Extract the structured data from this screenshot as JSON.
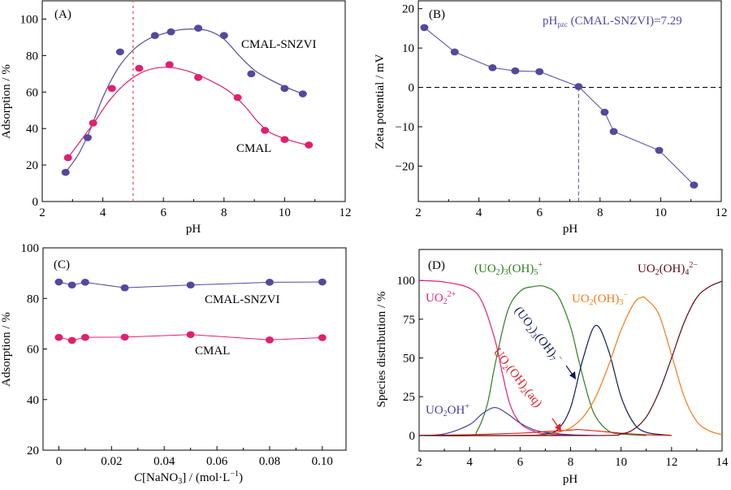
{
  "chart_data": [
    {
      "panel": "A",
      "type": "scatter",
      "panel_label": "(A)",
      "xlabel": "pH",
      "ylabel": "Adsorption / %",
      "xlim": [
        2,
        12
      ],
      "ylim": [
        0,
        110
      ],
      "xticks": [
        2,
        4,
        6,
        8,
        10,
        12
      ],
      "yticks": [
        0,
        20,
        40,
        60,
        80,
        100
      ],
      "reference_line": {
        "x": 5,
        "style": "dotted",
        "color": "#e8646e"
      },
      "series": [
        {
          "name": "CMAL-SNZVI",
          "color": "#56479c",
          "fit": "smooth",
          "x": [
            2.77,
            3.5,
            4.57,
            5.72,
            6.25,
            7.15,
            8.0,
            8.9,
            10.0,
            10.6
          ],
          "y": [
            16,
            35,
            82,
            91,
            93,
            95,
            91,
            70,
            62,
            59
          ],
          "fit_x": [
            2.77,
            3.2,
            3.6,
            4.0,
            4.5,
            5.0,
            5.5,
            6.0,
            6.5,
            7.0,
            7.5,
            8.0,
            8.5,
            9.0,
            9.5,
            10.0,
            10.6
          ],
          "fit_y": [
            16,
            26,
            40,
            57,
            73,
            83,
            89,
            92,
            94,
            94.5,
            93.5,
            89,
            80,
            72,
            67,
            63,
            59
          ]
        },
        {
          "name": "CMAL",
          "color": "#e0206e",
          "fit": "smooth",
          "x": [
            2.85,
            3.68,
            4.3,
            5.2,
            6.2,
            7.15,
            8.45,
            9.35,
            10.0,
            10.8
          ],
          "y": [
            24,
            43,
            62,
            73,
            75,
            68,
            57,
            39,
            34,
            31
          ],
          "fit_x": [
            2.85,
            3.3,
            3.7,
            4.2,
            4.7,
            5.2,
            5.7,
            6.2,
            6.7,
            7.2,
            7.7,
            8.2,
            8.7,
            9.1,
            9.5,
            10.0,
            10.5,
            10.8
          ],
          "fit_y": [
            24,
            34,
            43,
            55,
            64,
            70,
            73,
            73.5,
            72,
            69,
            65,
            60,
            52,
            44,
            38,
            34.5,
            32,
            31
          ]
        }
      ],
      "annotations": [
        "CMAL-SNZVI",
        "CMAL"
      ]
    },
    {
      "panel": "B",
      "type": "line",
      "panel_label": "(B)",
      "xlabel": "pH",
      "ylabel": "Zeta potential / mV",
      "xlim": [
        2,
        12
      ],
      "ylim": [
        -29,
        22
      ],
      "xticks": [
        2,
        4,
        6,
        8,
        10,
        12
      ],
      "yticks": [
        -20,
        -10,
        0,
        10,
        20
      ],
      "annotation": {
        "text_main": "pH",
        "text_sub": "pzc",
        "text_rest": " (CMAL-SNZVI)=7.29"
      },
      "pzc": 7.29,
      "series": [
        {
          "name": "CMAL-SNZVI",
          "color": "#56479c",
          "x": [
            2.2,
            3.2,
            4.45,
            5.2,
            6.0,
            7.29,
            8.15,
            8.45,
            9.95,
            11.1
          ],
          "y": [
            15.2,
            9.0,
            5.0,
            4.2,
            4.0,
            0.2,
            -6.3,
            -11.2,
            -16.0,
            -24.8
          ]
        }
      ]
    },
    {
      "panel": "C",
      "type": "line",
      "panel_label": "(C)",
      "xlabel_italic": "C",
      "xlabel_rest": "[NaNO",
      "xlabel_sub": "3",
      "xlabel_end": "] / (mol·L",
      "xlabel_sup": "−1",
      "xlabel_close": ")",
      "ylabel": "Adsorption / %",
      "xlim": [
        -0.006,
        0.109
      ],
      "ylim": [
        20,
        100
      ],
      "xticks": [
        "0",
        "0.02",
        "0.04",
        "0.06",
        "0.08",
        "0.10"
      ],
      "xtick_values": [
        0,
        0.02,
        0.04,
        0.06,
        0.08,
        0.1
      ],
      "yticks": [
        20,
        40,
        60,
        80,
        100
      ],
      "series": [
        {
          "name": "CMAL-SNZVI",
          "color": "#56479c",
          "x": [
            0,
            0.005,
            0.01,
            0.025,
            0.05,
            0.08,
            0.1
          ],
          "y": [
            86.5,
            85.3,
            86.4,
            84.2,
            85.3,
            86.4,
            86.5
          ]
        },
        {
          "name": "CMAL",
          "color": "#e0206e",
          "x": [
            0,
            0.005,
            0.01,
            0.025,
            0.05,
            0.08,
            0.1
          ],
          "y": [
            64.6,
            63.4,
            64.6,
            64.7,
            65.7,
            63.6,
            64.5
          ]
        }
      ],
      "annotations": [
        "CMAL-SNZVI",
        "CMAL"
      ]
    },
    {
      "panel": "D",
      "type": "line",
      "panel_label": "(D)",
      "xlabel": "pH",
      "ylabel": "Species distribution / %",
      "xlim": [
        2,
        14
      ],
      "ylim": [
        -10,
        120
      ],
      "xticks": [
        2,
        4,
        6,
        8,
        10,
        12,
        14
      ],
      "yticks": [
        0,
        25,
        50,
        75,
        100
      ],
      "series": [
        {
          "name": "UO2^2+",
          "label_main": "UO",
          "label_sub": "2",
          "label_sup": "2+",
          "color": "#e0207a",
          "x": [
            2,
            3,
            4,
            4.5,
            5,
            5.3,
            5.6,
            6,
            6.5,
            7,
            8
          ],
          "y": [
            100,
            99,
            95,
            86,
            62,
            40,
            20,
            8,
            3,
            1,
            0
          ]
        },
        {
          "name": "UO2OH+",
          "label_main": "UO",
          "label_sub": "2",
          "label_rest": "OH",
          "label_sup": "+",
          "color": "#4b3c9a",
          "x": [
            2,
            3,
            4,
            4.5,
            5,
            5.5,
            6,
            6.5,
            7,
            8,
            9
          ],
          "y": [
            0,
            1,
            7,
            14,
            18,
            14,
            8,
            4,
            2,
            0.5,
            0
          ]
        },
        {
          "name": "(UO2)3(OH)5+",
          "color": "#2e7d1e",
          "x": [
            2,
            4,
            4.3,
            4.7,
            5,
            5.5,
            6,
            6.5,
            7,
            7.5,
            8,
            8.3,
            8.7,
            9,
            9.5,
            10,
            11
          ],
          "y": [
            0,
            0,
            3,
            20,
            45,
            80,
            93,
            96,
            96,
            90,
            70,
            50,
            25,
            12,
            3,
            1,
            0
          ]
        },
        {
          "name": "(UO2)3(OH)7-",
          "color": "#0f1a55",
          "x": [
            2,
            6,
            7,
            7.5,
            8,
            8.5,
            9,
            9.5,
            10,
            10.5,
            11,
            12
          ],
          "y": [
            0,
            0,
            1,
            4,
            18,
            50,
            71,
            55,
            25,
            8,
            2,
            0
          ]
        },
        {
          "name": "UO2(OH)2(aq)",
          "color": "#e02020",
          "x": [
            2,
            4,
            6,
            7,
            8,
            8.3,
            9,
            10,
            11,
            12
          ],
          "y": [
            0,
            0.5,
            1.5,
            2.5,
            3.5,
            3.8,
            3,
            1.5,
            0.5,
            0
          ]
        },
        {
          "name": "UO2(OH)3-",
          "color": "#f07c1a",
          "x": [
            2,
            6,
            7,
            7.5,
            8,
            8.5,
            9,
            9.5,
            10,
            10.5,
            10.8,
            11,
            11.5,
            12,
            12.5,
            13,
            13.5,
            14
          ],
          "y": [
            0,
            0,
            0.5,
            2,
            5,
            12,
            25,
            45,
            68,
            85,
            89,
            88,
            78,
            52,
            25,
            9,
            3,
            0.5
          ]
        },
        {
          "name": "UO2(OH)4^2-",
          "color": "#5a0a14",
          "x": [
            2,
            9,
            10,
            10.5,
            11,
            11.5,
            12,
            12.5,
            13,
            13.5,
            14
          ],
          "y": [
            0,
            0,
            1,
            4,
            12,
            28,
            50,
            73,
            89,
            96,
            99.5
          ]
        }
      ],
      "labels": {
        "uo2_2plus": {
          "main": "UO",
          "sub": "2",
          "sup": "2+"
        },
        "uo2oh_plus": {
          "main": "UO",
          "sub": "2",
          "rest": "OH",
          "sup": "+"
        },
        "trimer5": {
          "p1": "(UO",
          "s1": "2",
          "p2": ")",
          "s2": "3",
          "p3": "(OH)",
          "s3": "5",
          "sup": "+"
        },
        "trimer7": {
          "p1": "(UO",
          "s1": "2",
          "p2": ")",
          "s2": "3",
          "p3": "(OH)",
          "s3": "7",
          "sup": "−"
        },
        "neutral": {
          "p1": "UO",
          "s1": "2",
          "p2": "(OH)",
          "s2": "2",
          "p3": "(aq)"
        },
        "tri_oh": {
          "p1": "UO",
          "s1": "2",
          "p2": "(OH)",
          "s2": "3",
          "sup": "−"
        },
        "tetra_oh": {
          "p1": "UO",
          "s1": "2",
          "p2": "(OH)",
          "s2": "4",
          "sup": "2−"
        }
      }
    }
  ]
}
